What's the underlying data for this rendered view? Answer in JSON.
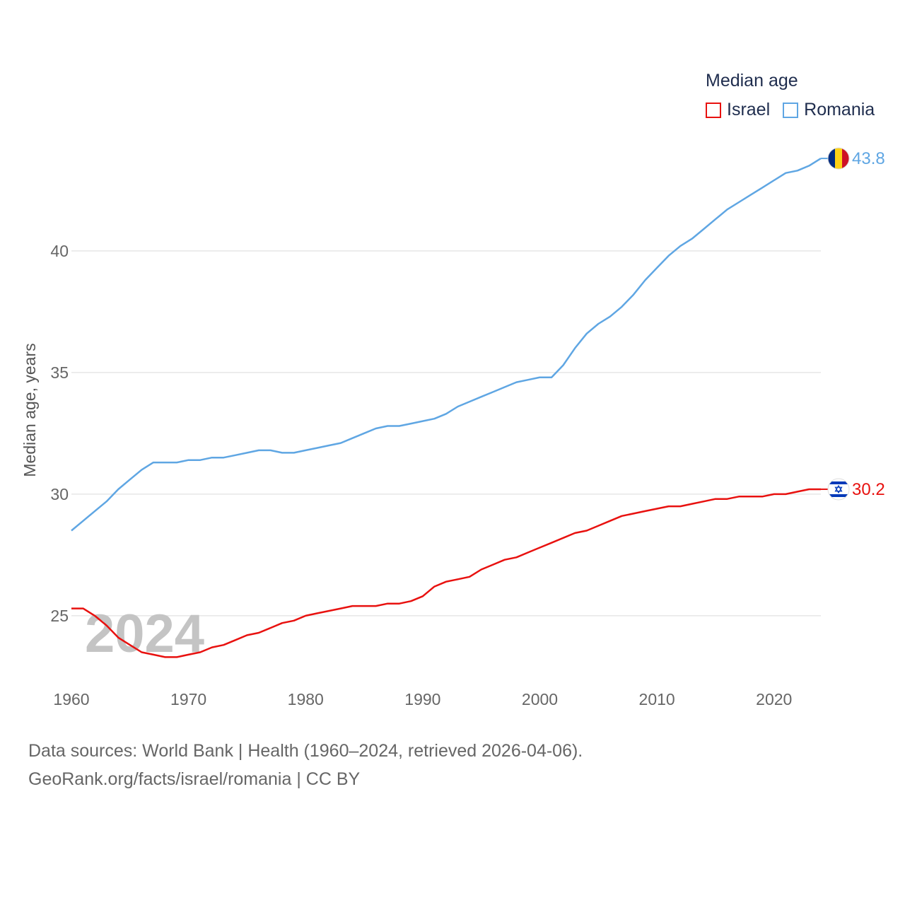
{
  "legend": {
    "title": "Median age",
    "items": [
      {
        "name": "Israel",
        "color": "#e8110f"
      },
      {
        "name": "Romania",
        "color": "#5fa6e3"
      }
    ]
  },
  "watermark_year": "2024",
  "source": {
    "line1": "Data sources: World Bank | Health (1960–2024, retrieved 2026-04-06).",
    "line2": "GeoRank.org/facts/israel/romania | CC BY"
  },
  "chart_data": {
    "type": "line",
    "title": "Median age",
    "xlabel": "",
    "ylabel": "Median age, years",
    "xlim": [
      1960,
      2024
    ],
    "ylim": [
      22.7,
      44.5
    ],
    "x_ticks": [
      1960,
      1970,
      1980,
      1990,
      2000,
      2010,
      2020
    ],
    "y_ticks": [
      25,
      30,
      35,
      40
    ],
    "grid": true,
    "x": [
      1960,
      1961,
      1962,
      1963,
      1964,
      1965,
      1966,
      1967,
      1968,
      1969,
      1970,
      1971,
      1972,
      1973,
      1974,
      1975,
      1976,
      1977,
      1978,
      1979,
      1980,
      1981,
      1982,
      1983,
      1984,
      1985,
      1986,
      1987,
      1988,
      1989,
      1990,
      1991,
      1992,
      1993,
      1994,
      1995,
      1996,
      1997,
      1998,
      1999,
      2000,
      2001,
      2002,
      2003,
      2004,
      2005,
      2006,
      2007,
      2008,
      2009,
      2010,
      2011,
      2012,
      2013,
      2014,
      2015,
      2016,
      2017,
      2018,
      2019,
      2020,
      2021,
      2022,
      2023,
      2024
    ],
    "series": [
      {
        "name": "Israel",
        "color": "#e8110f",
        "end_label": "30.2",
        "values": [
          25.3,
          25.3,
          25.0,
          24.6,
          24.1,
          23.8,
          23.5,
          23.4,
          23.3,
          23.3,
          23.4,
          23.5,
          23.7,
          23.8,
          24.0,
          24.2,
          24.3,
          24.5,
          24.7,
          24.8,
          25.0,
          25.1,
          25.2,
          25.3,
          25.4,
          25.4,
          25.4,
          25.5,
          25.5,
          25.6,
          25.8,
          26.2,
          26.4,
          26.5,
          26.6,
          26.9,
          27.1,
          27.3,
          27.4,
          27.6,
          27.8,
          28.0,
          28.2,
          28.4,
          28.5,
          28.7,
          28.9,
          29.1,
          29.2,
          29.3,
          29.4,
          29.5,
          29.5,
          29.6,
          29.7,
          29.8,
          29.8,
          29.9,
          29.9,
          29.9,
          30.0,
          30.0,
          30.1,
          30.2,
          30.2
        ]
      },
      {
        "name": "Romania",
        "color": "#5fa6e3",
        "end_label": "43.8",
        "values": [
          28.5,
          28.9,
          29.3,
          29.7,
          30.2,
          30.6,
          31.0,
          31.3,
          31.3,
          31.3,
          31.4,
          31.4,
          31.5,
          31.5,
          31.6,
          31.7,
          31.8,
          31.8,
          31.7,
          31.7,
          31.8,
          31.9,
          32.0,
          32.1,
          32.3,
          32.5,
          32.7,
          32.8,
          32.8,
          32.9,
          33.0,
          33.1,
          33.3,
          33.6,
          33.8,
          34.0,
          34.2,
          34.4,
          34.6,
          34.7,
          34.8,
          34.8,
          35.3,
          36.0,
          36.6,
          37.0,
          37.3,
          37.7,
          38.2,
          38.8,
          39.3,
          39.8,
          40.2,
          40.5,
          40.9,
          41.3,
          41.7,
          42.0,
          42.3,
          42.6,
          42.9,
          43.2,
          43.3,
          43.5,
          43.8
        ]
      }
    ]
  }
}
